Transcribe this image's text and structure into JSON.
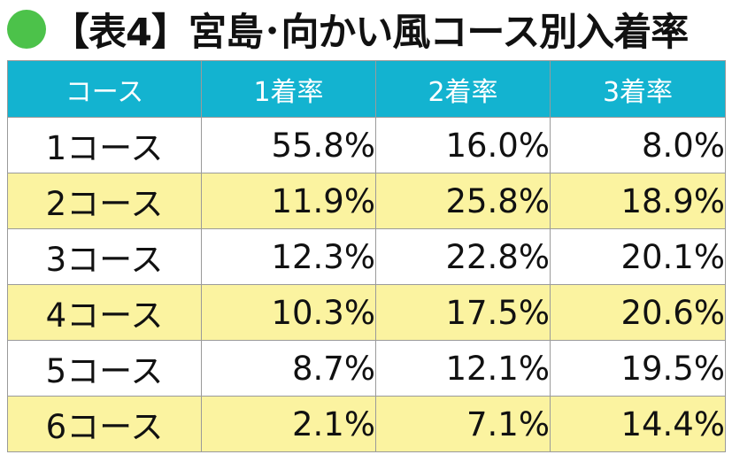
{
  "title": "【表4】宮島･向かい風コース別入着率",
  "colors": {
    "dot": "#4cc24a",
    "header_bg": "#13b3d0",
    "row_odd": "#ffffff",
    "row_even": "#fbf3a0"
  },
  "chart_data": {
    "type": "table",
    "columns": [
      "コース",
      "1着率",
      "2着率",
      "3着率"
    ],
    "rows": [
      {
        "course": "1コース",
        "values": [
          "55.8%",
          "16.0%",
          "8.0%"
        ]
      },
      {
        "course": "2コース",
        "values": [
          "11.9%",
          "25.8%",
          "18.9%"
        ]
      },
      {
        "course": "3コース",
        "values": [
          "12.3%",
          "22.8%",
          "20.1%"
        ]
      },
      {
        "course": "4コース",
        "values": [
          "10.3%",
          "17.5%",
          "20.6%"
        ]
      },
      {
        "course": "5コース",
        "values": [
          "8.7%",
          "12.1%",
          "19.5%"
        ]
      },
      {
        "course": "6コース",
        "values": [
          "2.1%",
          "7.1%",
          "14.4%"
        ]
      }
    ]
  }
}
